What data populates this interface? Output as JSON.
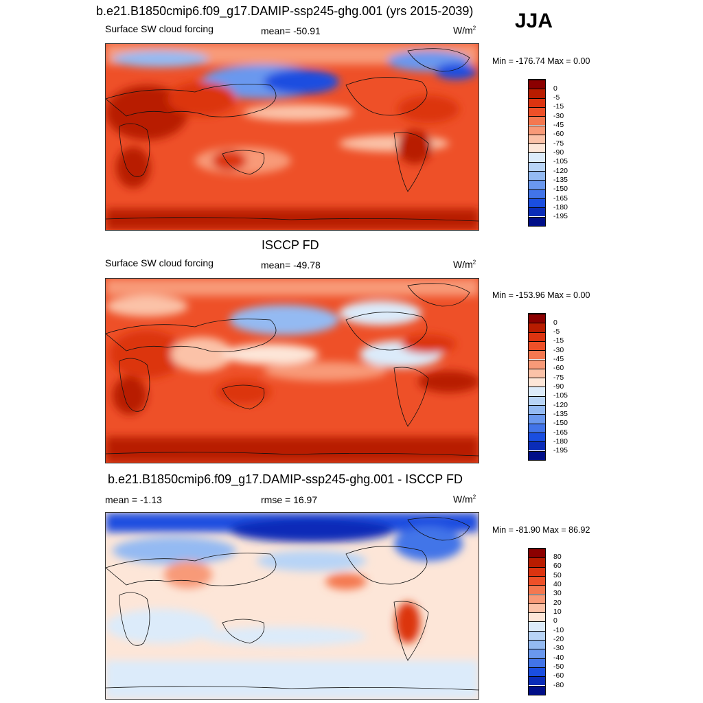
{
  "season": "JJA",
  "panels": [
    {
      "title": "b.e21.B1850cmip6.f09_g17.DAMIP-ssp245-ghg.001 (yrs 2015-2039)",
      "left_label": "Surface SW cloud forcing",
      "center_label": "mean= -50.91",
      "units": "W/m",
      "units_sup": "2",
      "minmax": "Min = -176.74 Max =   0.00",
      "colorbar": {
        "labels": [
          "0",
          "-5",
          "-15",
          "-30",
          "-45",
          "-60",
          "-75",
          "-90",
          "-105",
          "-120",
          "-135",
          "-150",
          "-165",
          "-180",
          "-195"
        ],
        "colors": [
          "#8b0000",
          "#b81c00",
          "#dc3410",
          "#ee5028",
          "#f47850",
          "#f89a78",
          "#fbc2a8",
          "#fde6d8",
          "#dcebfa",
          "#b8d4f6",
          "#94baf2",
          "#6a98ee",
          "#4274e8",
          "#1a4ee0",
          "#0a2cb8",
          "#000e88"
        ]
      }
    },
    {
      "title": "ISCCP FD",
      "left_label": "Surface SW cloud forcing",
      "center_label": "mean= -49.78",
      "units": "W/m",
      "units_sup": "2",
      "minmax": "Min = -153.96 Max =   0.00",
      "colorbar": {
        "labels": [
          "0",
          "-5",
          "-15",
          "-30",
          "-45",
          "-60",
          "-75",
          "-90",
          "-105",
          "-120",
          "-135",
          "-150",
          "-165",
          "-180",
          "-195"
        ],
        "colors": [
          "#8b0000",
          "#b81c00",
          "#dc3410",
          "#ee5028",
          "#f47850",
          "#f89a78",
          "#fbc2a8",
          "#fde6d8",
          "#dcebfa",
          "#b8d4f6",
          "#94baf2",
          "#6a98ee",
          "#4274e8",
          "#1a4ee0",
          "#0a2cb8",
          "#000e88"
        ]
      }
    },
    {
      "title": "b.e21.B1850cmip6.f09_g17.DAMIP-ssp245-ghg.001 - ISCCP FD",
      "left_label": "mean =  -1.13",
      "center_label": "rmse =  16.97",
      "units": "W/m",
      "units_sup": "2",
      "minmax": "Min = -81.90 Max =  86.92",
      "colorbar": {
        "labels": [
          "80",
          "60",
          "50",
          "40",
          "30",
          "20",
          "10",
          "0",
          "-10",
          "-20",
          "-30",
          "-40",
          "-50",
          "-60",
          "-80"
        ],
        "colors": [
          "#8b0000",
          "#b81c00",
          "#dc3410",
          "#ee5028",
          "#f47850",
          "#f89a78",
          "#fbc2a8",
          "#fde6d8",
          "#dcebfa",
          "#b8d4f6",
          "#94baf2",
          "#6a98ee",
          "#4274e8",
          "#1a4ee0",
          "#0a2cb8",
          "#000e88"
        ]
      }
    }
  ]
}
